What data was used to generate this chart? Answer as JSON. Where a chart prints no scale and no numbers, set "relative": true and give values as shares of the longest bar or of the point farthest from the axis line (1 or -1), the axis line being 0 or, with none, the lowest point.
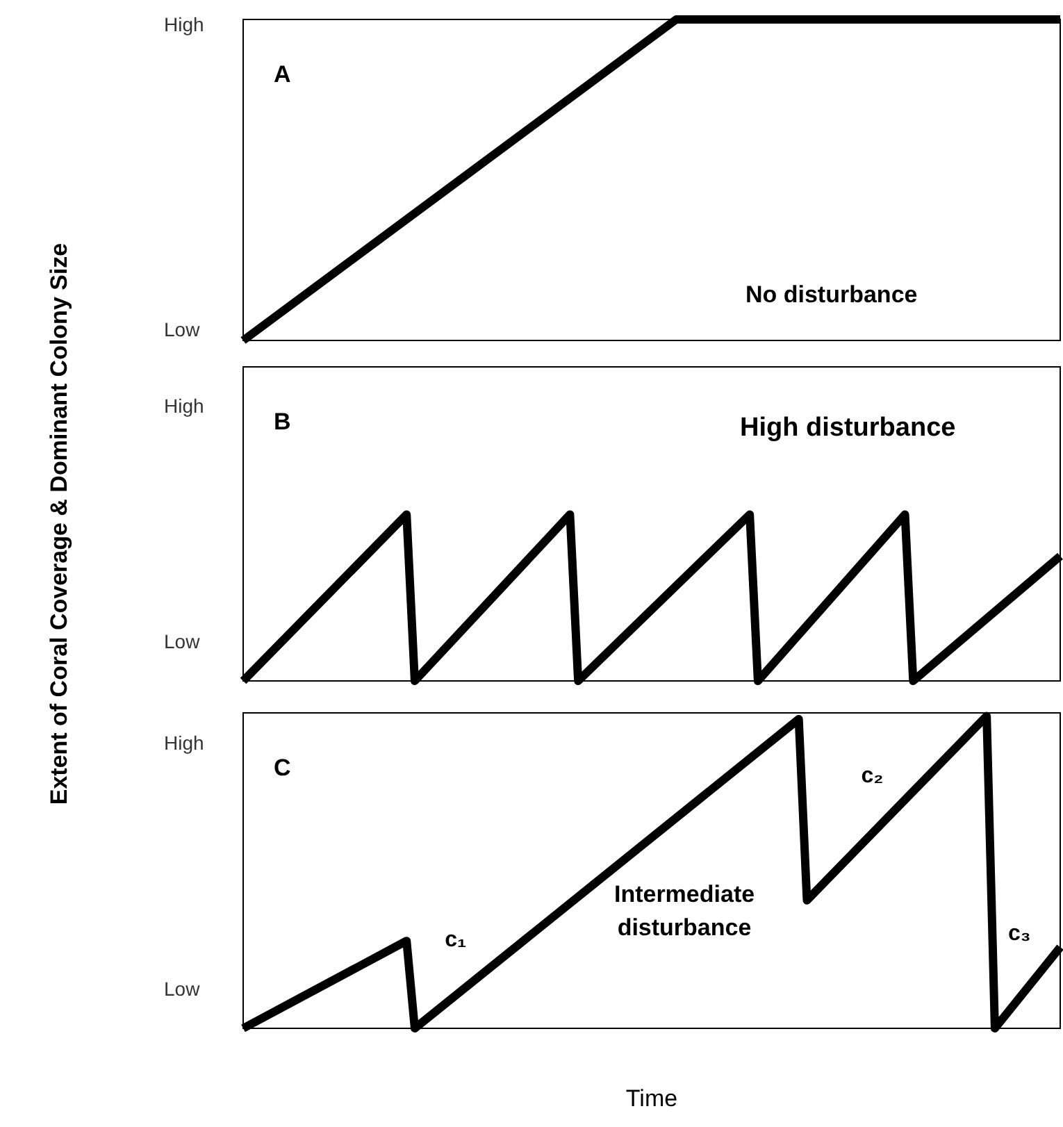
{
  "chart_data": [
    {
      "type": "line",
      "title": "A",
      "relative": true,
      "annotations": [
        "High",
        "Low",
        "No disturbance"
      ],
      "categories": [
        null,
        null,
        null,
        null,
        null,
        null,
        null,
        null,
        null,
        null,
        null,
        null,
        null,
        null,
        null,
        null,
        null,
        null,
        null,
        null,
        null,
        null,
        null,
        null,
        null,
        null,
        null,
        null,
        null,
        null,
        null,
        null,
        null,
        null,
        null,
        null,
        null,
        null,
        null,
        null,
        null,
        null,
        null,
        null,
        null,
        null,
        null,
        null,
        null,
        null,
        null,
        null,
        null,
        null,
        null,
        null,
        null,
        null,
        null,
        null,
        null,
        null,
        null,
        null,
        null,
        null,
        null,
        null,
        null,
        null,
        null,
        null,
        null,
        null,
        null,
        null,
        null,
        null,
        null,
        null,
        null,
        null,
        null,
        null,
        null,
        null,
        null,
        null,
        null,
        null,
        null,
        null,
        null,
        null,
        null,
        null,
        null,
        null,
        null,
        null,
        null
      ],
      "series": [
        {
          "color": "#000000",
          "values": [
            0,
            null,
            null,
            null,
            null,
            null,
            null,
            null,
            null,
            null,
            null,
            null,
            null,
            null,
            null,
            null,
            null,
            null,
            null,
            null,
            null,
            null,
            null,
            null,
            null,
            null,
            null,
            null,
            null,
            null,
            null,
            null,
            null,
            null,
            null,
            null,
            null,
            null,
            null,
            null,
            null,
            null,
            null,
            null,
            null,
            null,
            null,
            null,
            null,
            null,
            null,
            null,
            null,
            1,
            null,
            null,
            null,
            null,
            null,
            null,
            null,
            null,
            null,
            null,
            null,
            null,
            null,
            null,
            null,
            null,
            null,
            null,
            null,
            null,
            null,
            null,
            null,
            null,
            null,
            null,
            null,
            null,
            null,
            null,
            null,
            null,
            null,
            null,
            null,
            null,
            null,
            null,
            null,
            null,
            null,
            null,
            null,
            null,
            null,
            null,
            1
          ]
        }
      ]
    },
    {
      "type": "line",
      "title": "B",
      "relative": true,
      "ylabel": "Extent of Coral Coverage & Dominant Colony Size",
      "annotations": [
        "High",
        "Low",
        "High disturbance"
      ],
      "categories": [
        null,
        null,
        null,
        null,
        null,
        null,
        null,
        null,
        null,
        null,
        null,
        null,
        null,
        null,
        null,
        null,
        null,
        null,
        null,
        null,
        null,
        null,
        null,
        null,
        null,
        null,
        null,
        null,
        null,
        null,
        null,
        null,
        null,
        null,
        null,
        null,
        null,
        null,
        null,
        null,
        null,
        null,
        null,
        null,
        null,
        null,
        null,
        null,
        null,
        null,
        null,
        null,
        null,
        null,
        null,
        null,
        null,
        null,
        null,
        null,
        null,
        null,
        null,
        null,
        null,
        null,
        null,
        null,
        null,
        null,
        null,
        null,
        null,
        null,
        null,
        null,
        null,
        null,
        null,
        null,
        null,
        null,
        null,
        null,
        null,
        null,
        null,
        null,
        null,
        null,
        null,
        null,
        null,
        null,
        null,
        null,
        null,
        null,
        null,
        null,
        null
      ],
      "series": [
        {
          "color": "#000000",
          "values": [
            0,
            null,
            null,
            null,
            null,
            null,
            null,
            null,
            null,
            null,
            null,
            null,
            null,
            null,
            null,
            null,
            null,
            null,
            null,
            null,
            1,
            0,
            null,
            null,
            null,
            null,
            null,
            null,
            null,
            null,
            null,
            null,
            null,
            null,
            null,
            null,
            null,
            null,
            null,
            null,
            1,
            0,
            null,
            null,
            null,
            null,
            null,
            null,
            null,
            null,
            null,
            null,
            null,
            null,
            null,
            null,
            null,
            null,
            null,
            null,
            null,
            null,
            1,
            0,
            null,
            null,
            null,
            null,
            null,
            null,
            null,
            null,
            null,
            null,
            null,
            null,
            null,
            null,
            null,
            null,
            null,
            1,
            0,
            null,
            null,
            null,
            null,
            null,
            null,
            null,
            null,
            null,
            null,
            null,
            null,
            null,
            null,
            null,
            null,
            null,
            0.75
          ]
        }
      ]
    },
    {
      "type": "line",
      "title": "C",
      "relative": true,
      "xlabel": "Time",
      "annotations": [
        "High",
        "Low",
        "Intermediate disturbance",
        "c₁",
        "c₂",
        "c₃"
      ],
      "categories": [
        null,
        null,
        null,
        null,
        null,
        null,
        null,
        null,
        null,
        null,
        null,
        null,
        null,
        null,
        null,
        null,
        null,
        null,
        null,
        null,
        null,
        null,
        null,
        null,
        null,
        null,
        null,
        null,
        null,
        null,
        null,
        null,
        null,
        null,
        null,
        null,
        null,
        null,
        null,
        null,
        null,
        null,
        null,
        null,
        null,
        null,
        null,
        null,
        null,
        null,
        null,
        null,
        null,
        null,
        null,
        null,
        null,
        null,
        null,
        null,
        null,
        null,
        null,
        null,
        null,
        null,
        null,
        null,
        null,
        null,
        null,
        null,
        null,
        null,
        null,
        null,
        null,
        null,
        null,
        null,
        null,
        null,
        null,
        null,
        null,
        null,
        null,
        null,
        null,
        null,
        null,
        null,
        null,
        null,
        null,
        null,
        null,
        null,
        null,
        null,
        null
      ],
      "series": [
        {
          "color": "#000000",
          "values": [
            0,
            null,
            null,
            null,
            null,
            null,
            null,
            null,
            null,
            null,
            null,
            null,
            null,
            null,
            null,
            null,
            null,
            null,
            null,
            null,
            0.28,
            0,
            null,
            null,
            null,
            null,
            null,
            null,
            null,
            null,
            null,
            null,
            null,
            null,
            null,
            null,
            null,
            null,
            null,
            null,
            null,
            null,
            null,
            null,
            null,
            null,
            null,
            null,
            null,
            null,
            null,
            null,
            null,
            null,
            null,
            null,
            null,
            null,
            null,
            null,
            null,
            null,
            null,
            null,
            null,
            null,
            null,
            null,
            0.99,
            0.41,
            null,
            null,
            null,
            null,
            null,
            null,
            null,
            null,
            null,
            null,
            null,
            null,
            null,
            null,
            null,
            null,
            null,
            null,
            null,
            null,
            null,
            1,
            0,
            null,
            null,
            null,
            null,
            null,
            null,
            null,
            0.26
          ]
        }
      ]
    }
  ]
}
